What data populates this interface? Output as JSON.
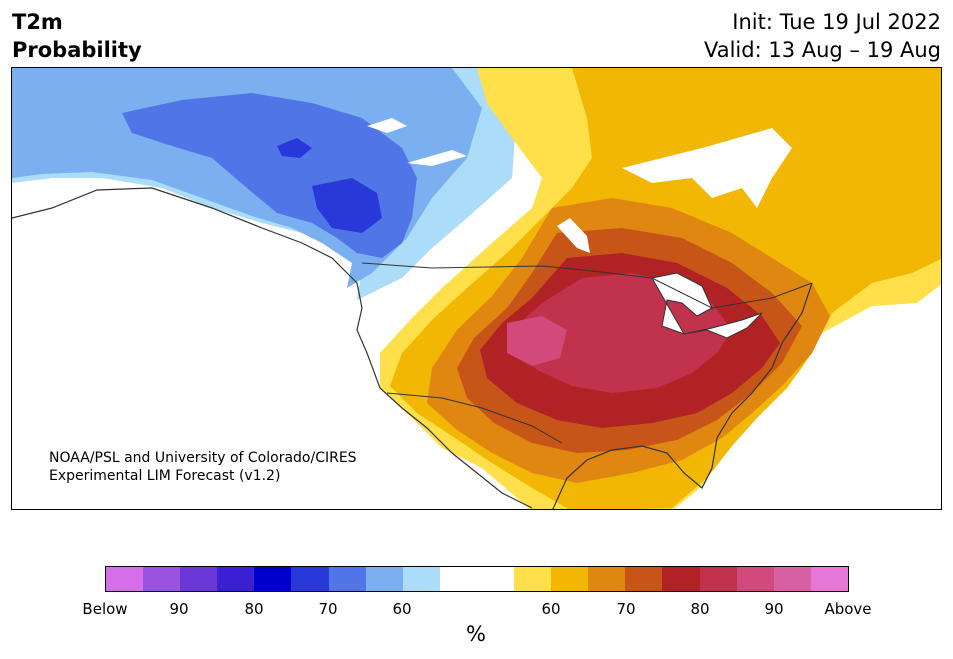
{
  "header": {
    "title_line1": "T2m",
    "title_line2": "Probability",
    "init": "Init: Tue 19 Jul 2022",
    "valid": "Valid: 13 Aug – 19 Aug"
  },
  "credit": {
    "line1": "NOAA/PSL and University of Colorado/CIRES",
    "line2": "Experimental LIM Forecast (v1.2)"
  },
  "colorbar": {
    "units": "%",
    "colors": [
      "#d56fe8",
      "#9a52e0",
      "#6a37d8",
      "#3a1fd3",
      "#0000cd",
      "#2838d9",
      "#4f75e6",
      "#7ab0f0",
      "#abdcf8",
      "#ffffff",
      "#ffffff",
      "#ffe04a",
      "#f2b705",
      "#df8710",
      "#c65517",
      "#b02224",
      "#c1324d",
      "#d14a7b",
      "#da60a5",
      "#e776d9"
    ],
    "labels": [
      "Below",
      "90",
      "80",
      "70",
      "60",
      "60",
      "70",
      "80",
      "90",
      "Above"
    ]
  },
  "legend_colors": {
    "below_strong": "#2838d9",
    "below_mod": "#4f75e6",
    "below_weak": "#7ab0f0",
    "below_faint": "#abdcf8",
    "above_faint": "#ffe04a",
    "above_weak": "#f2b705",
    "above_mod": "#df8710",
    "above_mid": "#c65517",
    "above_strong": "#b02224",
    "above_vstrong": "#c1324d",
    "above_peak": "#d14a7b"
  }
}
